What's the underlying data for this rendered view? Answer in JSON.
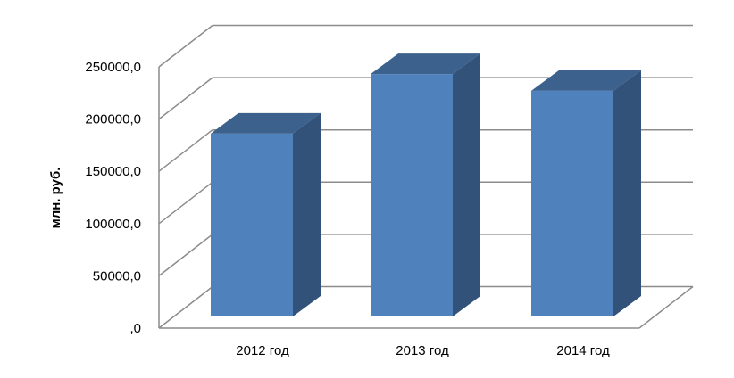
{
  "chart_data": {
    "type": "bar",
    "style": "3d-column",
    "categories": [
      "2012 год",
      "2013 год",
      "2014 год"
    ],
    "values": [
      175000,
      232000,
      216000
    ],
    "title": "",
    "xlabel": "",
    "ylabel": "млн. руб.",
    "ylim": [
      0,
      250000
    ],
    "yticks": [
      ",0",
      "50000,0",
      "100000,0",
      "150000,0",
      "200000,0",
      "250000,0"
    ],
    "ytick_values": [
      0,
      50000,
      100000,
      150000,
      200000,
      250000
    ],
    "grid": true,
    "legend": "none",
    "colors": {
      "front": "#4f81bd",
      "side": "#32527a",
      "top": "#3c618c",
      "grid": "#8c8c8c"
    }
  }
}
